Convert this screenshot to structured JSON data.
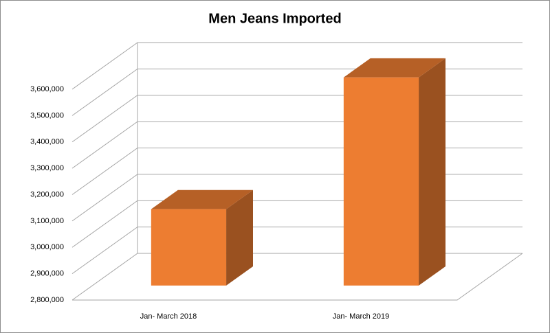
{
  "chart_data": {
    "type": "bar3d",
    "title": "Men Jeans Imported",
    "categories": [
      "Jan- March 2018",
      "Jan- March 2019"
    ],
    "values": [
      3090000,
      3590000
    ],
    "color": "#ED7D31",
    "ylim": [
      2800000,
      3600000
    ],
    "yticks": [
      {
        "value": 2800000,
        "label": "2,800,000"
      },
      {
        "value": 2900000,
        "label": "2,900,000"
      },
      {
        "value": 3000000,
        "label": "3,000,000"
      },
      {
        "value": 3100000,
        "label": "3,100,000"
      },
      {
        "value": 3200000,
        "label": "3,200,000"
      },
      {
        "value": 3300000,
        "label": "3,300,000"
      },
      {
        "value": 3400000,
        "label": "3,400,000"
      },
      {
        "value": 3500000,
        "label": "3,500,000"
      },
      {
        "value": 3600000,
        "label": "3,600,000"
      }
    ],
    "grid": true
  }
}
